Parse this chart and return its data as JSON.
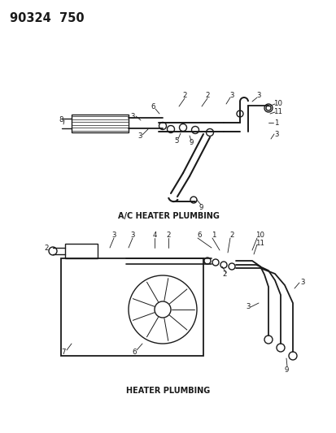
{
  "title_code": "90324  750",
  "bg_color": "#ffffff",
  "diagram1_label": "A/C HEATER PLUMBING",
  "diagram2_label": "HEATER PLUMBING",
  "label_fontsize": 7.0,
  "line_color": "#1a1a1a",
  "line_width": 1.0,
  "part_label_fontsize": 6.2,
  "title_fontsize": 10.5
}
